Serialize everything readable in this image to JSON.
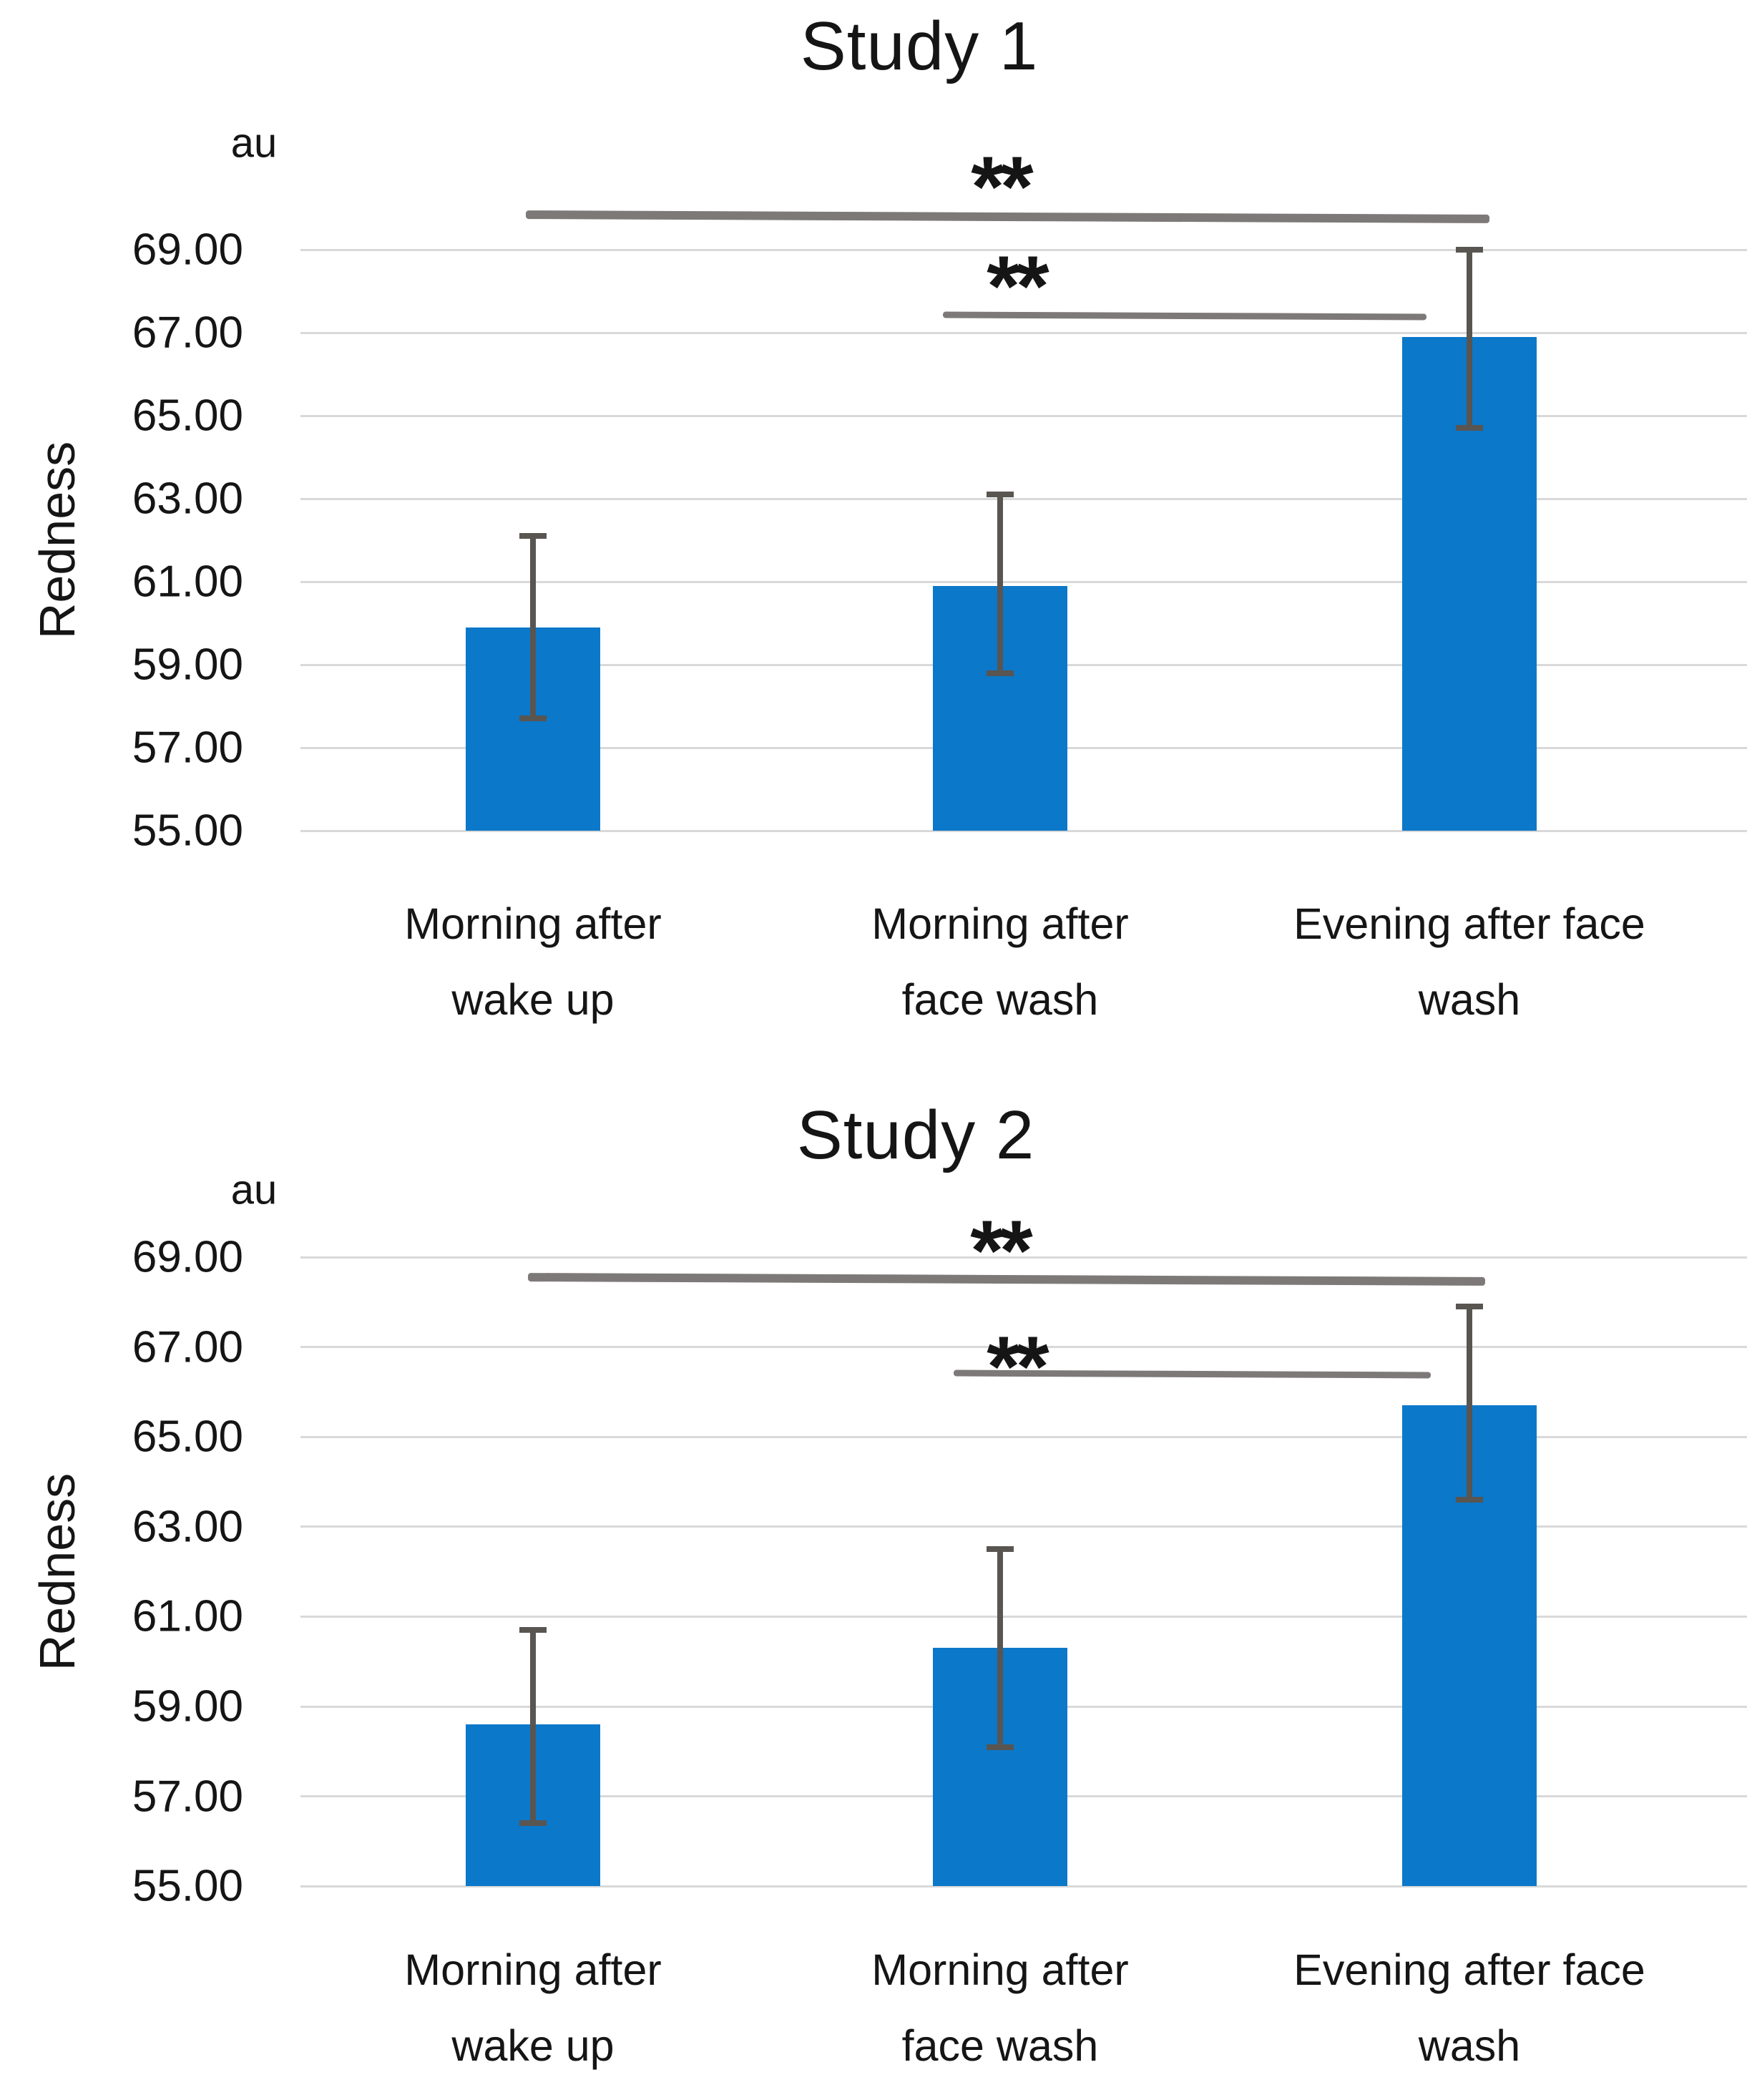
{
  "figure": {
    "background": "#ffffff",
    "colors": {
      "bar": "#0b78c9",
      "error_bar": "#595551",
      "significance_line": "#7e7979",
      "grid": "#d9d9d9",
      "text": "#151515"
    },
    "charts": [
      {
        "title": "Study 1",
        "unit_label": "au",
        "y_axis_title": "Redness",
        "chart_data": {
          "type": "bar",
          "categories": [
            "Morning after wake up",
            "Morning after face wash",
            "Evening after face wash"
          ],
          "category_lines": [
            [
              "Morning after",
              "wake up"
            ],
            [
              "Morning after",
              "face wash"
            ],
            [
              "Evening after face",
              "wash"
            ]
          ],
          "values": [
            59.9,
            60.9,
            66.9
          ],
          "error_high": [
            62.1,
            63.1,
            69.0
          ],
          "error_low": [
            57.7,
            58.8,
            64.7
          ],
          "ylabel": "Redness",
          "y_unit": "au",
          "ylim": [
            55,
            71.5
          ],
          "ytick_values": [
            69,
            67,
            65,
            63,
            61,
            59,
            57,
            55
          ],
          "ytick_labels": [
            "69.00",
            "67.00",
            "65.00",
            "63.00",
            "61.00",
            "59.00",
            "57.00",
            "55.00"
          ],
          "grid": true,
          "legend": "none",
          "significance": [
            {
              "from": "Morning after wake up",
              "to": "Evening after face wash",
              "label": "**",
              "line_value": 69.8
            },
            {
              "from": "Morning after face wash",
              "to": "Evening after face wash",
              "label": "**",
              "line_value": 67.4
            }
          ]
        }
      },
      {
        "title": "Study 2",
        "unit_label": "au",
        "y_axis_title": "Redness",
        "chart_data": {
          "type": "bar",
          "categories": [
            "Morning after wake up",
            "Morning after face wash",
            "Evening after face wash"
          ],
          "category_lines": [
            [
              "Morning after",
              "wake up"
            ],
            [
              "Morning after",
              "face wash"
            ],
            [
              "Evening after face",
              "wash"
            ]
          ],
          "values": [
            58.6,
            60.3,
            65.7
          ],
          "error_high": [
            60.7,
            62.5,
            67.9
          ],
          "error_low": [
            56.4,
            58.1,
            63.6
          ],
          "ylabel": "Redness",
          "y_unit": "au",
          "ylim": [
            55,
            71.5
          ],
          "ytick_values": [
            69,
            67,
            65,
            63,
            61,
            59,
            57,
            55
          ],
          "ytick_labels": [
            "69.00",
            "67.00",
            "65.00",
            "63.00",
            "61.00",
            "59.00",
            "57.00",
            "55.00"
          ],
          "grid": true,
          "legend": "none",
          "significance": [
            {
              "from": "Morning after wake up",
              "to": "Evening after face wash",
              "label": "**",
              "line_value": 68.5
            },
            {
              "from": "Morning after face wash",
              "to": "Evening after face wash",
              "label": "**",
              "line_value": 66.4
            }
          ]
        }
      }
    ]
  }
}
